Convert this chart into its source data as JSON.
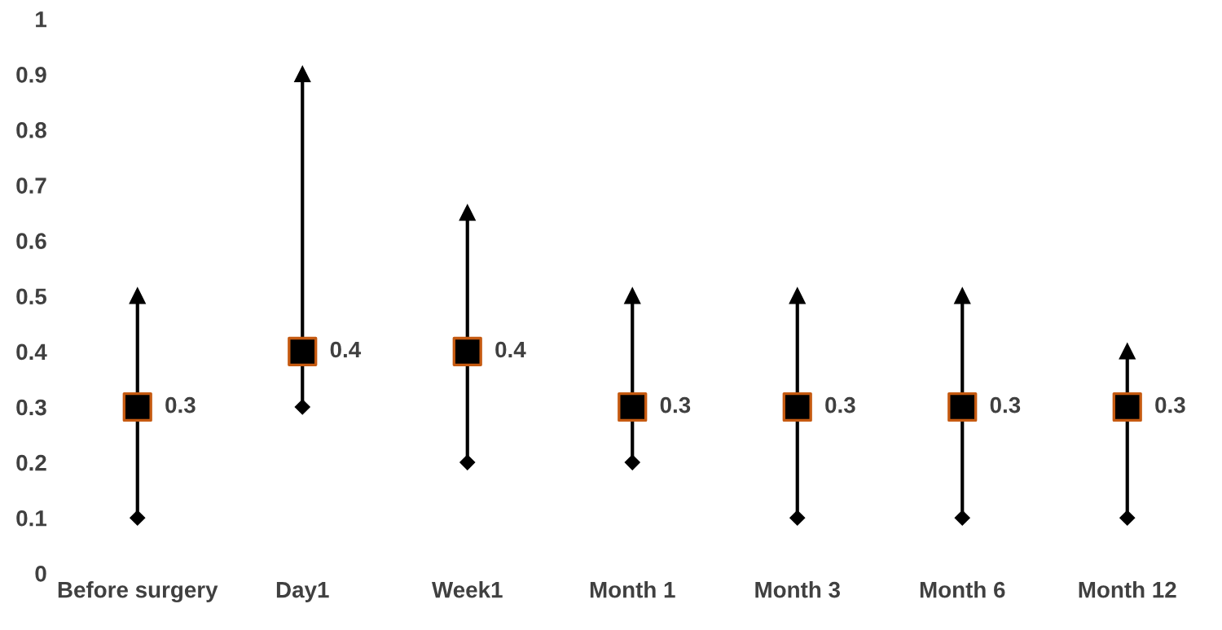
{
  "chart_data": {
    "type": "scatter",
    "categories": [
      "Before surgery",
      "Day1",
      "Week1",
      "Month 1",
      "Month 3",
      "Month 6",
      "Month 12"
    ],
    "series": [
      {
        "color": "#000000",
        "values": [
          0.3,
          0.4,
          0.4,
          0.3,
          0.3,
          0.3,
          0.3
        ],
        "errors": [
          [
            0.1,
            0.5
          ],
          [
            0.3,
            0.9
          ],
          [
            0.2,
            0.65
          ],
          [
            0.2,
            0.5
          ],
          [
            0.1,
            0.5
          ],
          [
            0.1,
            0.5
          ],
          [
            0.1,
            0.4
          ]
        ]
      }
    ],
    "marker": "square",
    "ylim": [
      0,
      1
    ],
    "yticks": [
      0,
      0.1,
      0.2,
      0.3,
      0.4,
      0.5,
      0.6,
      0.7,
      0.8,
      0.9,
      1
    ],
    "data_labels": true,
    "grid": false,
    "legend": false
  }
}
